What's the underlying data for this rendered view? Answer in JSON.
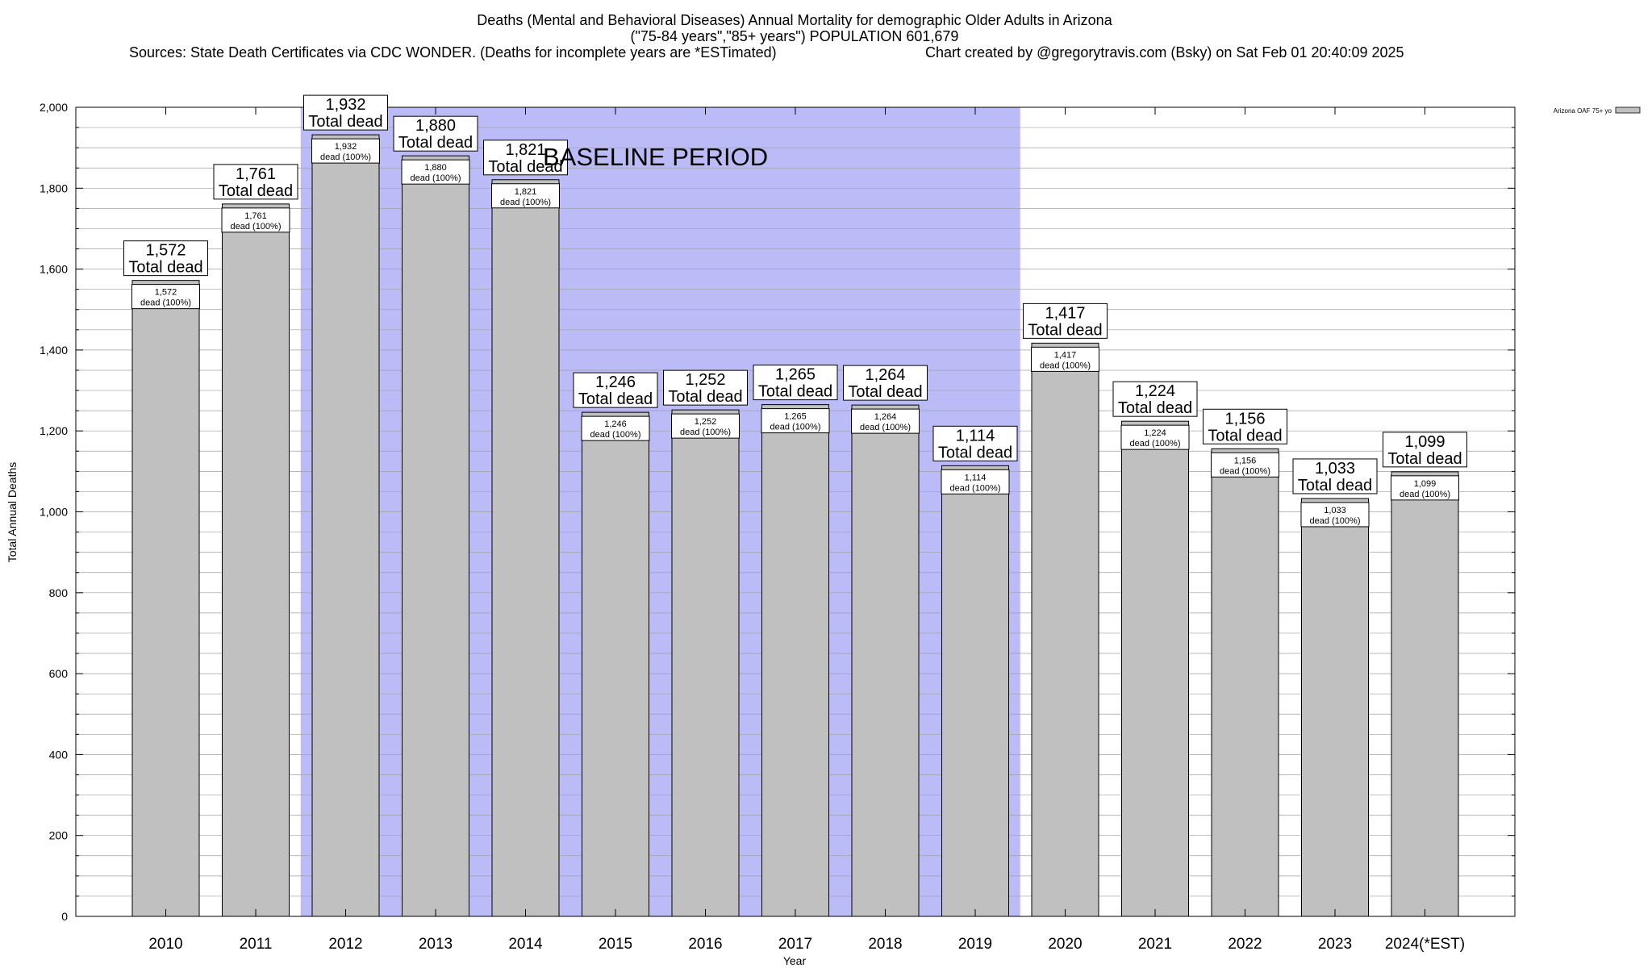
{
  "chart_data": {
    "type": "bar",
    "title_lines": [
      "Deaths (Mental and Behavioral Diseases) Annual Mortality for demographic Older Adults in Arizona",
      "(\"75-84 years\",\"85+ years\") POPULATION 601,679"
    ],
    "sources": "Sources: State Death Certificates via CDC WONDER. (Deaths for incomplete years are *ESTimated)",
    "credit": "Chart created by @gregorytravis.com (Bsky) on Sat Feb 01 20:40:09 2025",
    "xlabel": "Year",
    "ylabel": "Total Annual Deaths",
    "ylim": [
      0,
      2000
    ],
    "y_ticks": [
      0,
      200,
      400,
      600,
      800,
      1000,
      1200,
      1400,
      1600,
      1800,
      2000
    ],
    "y_tick_labels": [
      "0",
      "200",
      "400",
      "600",
      "800",
      "1,000",
      "1,200",
      "1,400",
      "1,600",
      "1,800",
      "2,000"
    ],
    "minor_grid_step": 50,
    "categories": [
      "2010",
      "2011",
      "2012",
      "2013",
      "2014",
      "2015",
      "2016",
      "2017",
      "2018",
      "2019",
      "2020",
      "2021",
      "2022",
      "2023",
      "2024(*EST)"
    ],
    "values": [
      1572,
      1761,
      1932,
      1880,
      1821,
      1246,
      1252,
      1265,
      1264,
      1114,
      1417,
      1224,
      1156,
      1033,
      1099
    ],
    "value_labels": [
      "1,572",
      "1,761",
      "1,932",
      "1,880",
      "1,821",
      "1,246",
      "1,252",
      "1,265",
      "1,264",
      "1,114",
      "1,417",
      "1,224",
      "1,156",
      "1,033",
      "1,099"
    ],
    "total_label": "Total dead",
    "dead_label": "dead (100%)",
    "baseline": {
      "label": "BASELINE PERIOD",
      "start": "2012",
      "end": "2019",
      "color": "#bbbbf8"
    },
    "legend": {
      "label": "Arizona OAF 75+ yo",
      "position": "top-right"
    },
    "bar_color": "#c0c0c0"
  }
}
